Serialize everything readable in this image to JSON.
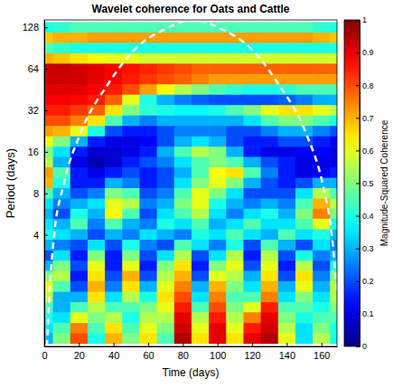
{
  "chart_data": {
    "type": "heatmap",
    "title": "Wavelet coherence for Oats and Cattle",
    "x_label": "Time (days)",
    "y_label": "Period (days)",
    "log": "y",
    "xlim": [
      0,
      169
    ],
    "ylim": [
      0.62,
      145
    ],
    "xticks": [
      0,
      20,
      40,
      60,
      80,
      100,
      120,
      140,
      160
    ],
    "yticks": [
      4,
      8,
      16,
      32,
      64,
      128
    ],
    "x": [
      0,
      10,
      20,
      30,
      40,
      50,
      60,
      70,
      80,
      90,
      100,
      110,
      120,
      130,
      140,
      150,
      160,
      170
    ],
    "periods": [
      128,
      107.6,
      90.5,
      76.1,
      64,
      53.8,
      45.3,
      38.1,
      32,
      26.9,
      22.6,
      19,
      16,
      13.5,
      11.3,
      9.5,
      8,
      6.7,
      5.7,
      4.8,
      4,
      3.4,
      2.8,
      2.4,
      2,
      1.7,
      1.4,
      1.2,
      1,
      0.84,
      0.71
    ],
    "values": [
      [
        0.4,
        0.42,
        0.45,
        0.45,
        0.45,
        0.45,
        0.45,
        0.45,
        0.45,
        0.45,
        0.45,
        0.45,
        0.45,
        0.45,
        0.45,
        0.45,
        0.42,
        0.4
      ],
      [
        0.68,
        0.7,
        0.7,
        0.72,
        0.72,
        0.72,
        0.72,
        0.72,
        0.72,
        0.72,
        0.72,
        0.72,
        0.72,
        0.72,
        0.72,
        0.72,
        0.7,
        0.68
      ],
      [
        0.45,
        0.42,
        0.4,
        0.4,
        0.4,
        0.4,
        0.4,
        0.4,
        0.4,
        0.4,
        0.4,
        0.4,
        0.4,
        0.4,
        0.4,
        0.4,
        0.4,
        0.4
      ],
      [
        0.7,
        0.68,
        0.65,
        0.62,
        0.6,
        0.6,
        0.58,
        0.58,
        0.58,
        0.58,
        0.58,
        0.58,
        0.58,
        0.58,
        0.58,
        0.58,
        0.58,
        0.58
      ],
      [
        0.93,
        0.93,
        0.92,
        0.9,
        0.88,
        0.86,
        0.84,
        0.82,
        0.8,
        0.78,
        0.78,
        0.78,
        0.78,
        0.78,
        0.78,
        0.78,
        0.78,
        0.78
      ],
      [
        0.92,
        0.92,
        0.92,
        0.9,
        0.88,
        0.85,
        0.82,
        0.8,
        0.78,
        0.75,
        0.72,
        0.72,
        0.72,
        0.72,
        0.72,
        0.72,
        0.72,
        0.72
      ],
      [
        0.9,
        0.9,
        0.9,
        0.88,
        0.85,
        0.8,
        0.72,
        0.62,
        0.55,
        0.5,
        0.45,
        0.42,
        0.4,
        0.4,
        0.42,
        0.45,
        0.45,
        0.45
      ],
      [
        0.88,
        0.88,
        0.87,
        0.85,
        0.78,
        0.6,
        0.4,
        0.3,
        0.25,
        0.22,
        0.2,
        0.2,
        0.2,
        0.2,
        0.22,
        0.25,
        0.3,
        0.3
      ],
      [
        0.85,
        0.85,
        0.82,
        0.78,
        0.65,
        0.5,
        0.42,
        0.4,
        0.38,
        0.38,
        0.4,
        0.45,
        0.5,
        0.6,
        0.65,
        0.65,
        0.6,
        0.55
      ],
      [
        0.8,
        0.8,
        0.75,
        0.65,
        0.45,
        0.3,
        0.25,
        0.3,
        0.3,
        0.3,
        0.3,
        0.3,
        0.35,
        0.45,
        0.5,
        0.5,
        0.45,
        0.4
      ],
      [
        0.72,
        0.7,
        0.6,
        0.4,
        0.2,
        0.15,
        0.15,
        0.2,
        0.25,
        0.25,
        0.25,
        0.2,
        0.2,
        0.25,
        0.3,
        0.3,
        0.25,
        0.2
      ],
      [
        0.6,
        0.5,
        0.3,
        0.15,
        0.1,
        0.1,
        0.12,
        0.2,
        0.3,
        0.35,
        0.3,
        0.2,
        0.15,
        0.15,
        0.2,
        0.2,
        0.15,
        0.12
      ],
      [
        0.5,
        0.35,
        0.15,
        0.08,
        0.08,
        0.1,
        0.15,
        0.3,
        0.45,
        0.55,
        0.5,
        0.3,
        0.15,
        0.1,
        0.1,
        0.12,
        0.12,
        0.1
      ],
      [
        0.55,
        0.3,
        0.1,
        0.05,
        0.08,
        0.15,
        0.2,
        0.25,
        0.35,
        0.45,
        0.5,
        0.45,
        0.3,
        0.2,
        0.15,
        0.1,
        0.1,
        0.1
      ],
      [
        0.72,
        0.45,
        0.15,
        0.1,
        0.15,
        0.2,
        0.15,
        0.2,
        0.3,
        0.45,
        0.62,
        0.65,
        0.45,
        0.25,
        0.15,
        0.1,
        0.12,
        0.15
      ],
      [
        0.7,
        0.4,
        0.15,
        0.15,
        0.3,
        0.25,
        0.15,
        0.2,
        0.35,
        0.5,
        0.6,
        0.5,
        0.3,
        0.2,
        0.15,
        0.2,
        0.3,
        0.3
      ],
      [
        0.45,
        0.3,
        0.2,
        0.25,
        0.5,
        0.45,
        0.2,
        0.25,
        0.45,
        0.6,
        0.5,
        0.35,
        0.2,
        0.2,
        0.2,
        0.35,
        0.55,
        0.45
      ],
      [
        0.35,
        0.25,
        0.3,
        0.35,
        0.6,
        0.55,
        0.25,
        0.3,
        0.5,
        0.6,
        0.4,
        0.3,
        0.25,
        0.3,
        0.25,
        0.45,
        0.7,
        0.55
      ],
      [
        0.3,
        0.2,
        0.4,
        0.3,
        0.62,
        0.45,
        0.2,
        0.35,
        0.45,
        0.55,
        0.35,
        0.25,
        0.35,
        0.4,
        0.3,
        0.5,
        0.75,
        0.5
      ],
      [
        0.35,
        0.3,
        0.45,
        0.25,
        0.45,
        0.3,
        0.25,
        0.4,
        0.35,
        0.45,
        0.3,
        0.35,
        0.45,
        0.35,
        0.35,
        0.45,
        0.6,
        0.4
      ],
      [
        0.4,
        0.35,
        0.3,
        0.2,
        0.3,
        0.25,
        0.35,
        0.3,
        0.25,
        0.4,
        0.35,
        0.45,
        0.35,
        0.3,
        0.45,
        0.35,
        0.4,
        0.3
      ],
      [
        0.3,
        0.25,
        0.2,
        0.35,
        0.2,
        0.4,
        0.25,
        0.2,
        0.45,
        0.35,
        0.25,
        0.4,
        0.2,
        0.45,
        0.3,
        0.2,
        0.35,
        0.25
      ],
      [
        0.2,
        0.35,
        0.15,
        0.5,
        0.15,
        0.5,
        0.2,
        0.35,
        0.55,
        0.2,
        0.35,
        0.55,
        0.15,
        0.55,
        0.2,
        0.4,
        0.25,
        0.3
      ],
      [
        0.3,
        0.5,
        0.2,
        0.6,
        0.15,
        0.6,
        0.15,
        0.5,
        0.65,
        0.15,
        0.5,
        0.6,
        0.2,
        0.6,
        0.15,
        0.55,
        0.2,
        0.4
      ],
      [
        0.5,
        0.55,
        0.15,
        0.65,
        0.2,
        0.7,
        0.2,
        0.55,
        0.7,
        0.2,
        0.6,
        0.55,
        0.3,
        0.65,
        0.2,
        0.65,
        0.25,
        0.5
      ],
      [
        0.6,
        0.45,
        0.2,
        0.7,
        0.25,
        0.65,
        0.3,
        0.6,
        0.75,
        0.3,
        0.7,
        0.5,
        0.35,
        0.7,
        0.3,
        0.6,
        0.3,
        0.55
      ],
      [
        0.55,
        0.3,
        0.3,
        0.65,
        0.35,
        0.55,
        0.4,
        0.65,
        0.8,
        0.35,
        0.75,
        0.45,
        0.45,
        0.75,
        0.35,
        0.5,
        0.35,
        0.55
      ],
      [
        0.45,
        0.3,
        0.45,
        0.55,
        0.45,
        0.45,
        0.5,
        0.6,
        0.85,
        0.45,
        0.8,
        0.5,
        0.6,
        0.85,
        0.45,
        0.45,
        0.4,
        0.5
      ],
      [
        0.4,
        0.35,
        0.6,
        0.5,
        0.55,
        0.4,
        0.55,
        0.55,
        0.9,
        0.55,
        0.85,
        0.55,
        0.75,
        0.9,
        0.5,
        0.4,
        0.45,
        0.45
      ],
      [
        0.35,
        0.45,
        0.75,
        0.45,
        0.65,
        0.45,
        0.6,
        0.5,
        0.92,
        0.6,
        0.9,
        0.6,
        0.85,
        0.92,
        0.55,
        0.35,
        0.5,
        0.4
      ],
      [
        0.3,
        0.5,
        0.8,
        0.4,
        0.7,
        0.5,
        0.65,
        0.45,
        0.95,
        0.65,
        0.9,
        0.65,
        0.9,
        0.95,
        0.6,
        0.35,
        0.55,
        0.4
      ]
    ],
    "colorbar": {
      "label": "Magnitude-Squared Coherence",
      "range": [
        0,
        1
      ],
      "ticks": [
        0,
        0.1,
        0.2,
        0.3,
        0.4,
        0.5,
        0.6,
        0.7,
        0.8,
        0.9,
        1
      ]
    },
    "coi": {
      "x": [
        1.5,
        3,
        5.7,
        10.9,
        21,
        37,
        52,
        70,
        86,
        102,
        120,
        135,
        151,
        161,
        166,
        169
      ],
      "period": [
        0.62,
        1.5,
        4,
        9,
        22,
        50,
        88,
        125,
        145,
        125,
        88,
        50,
        22,
        9,
        4,
        1.5
      ]
    }
  }
}
